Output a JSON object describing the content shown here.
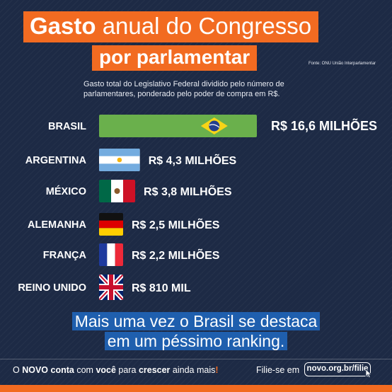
{
  "header": {
    "title_bold": "Gasto",
    "title_rest": "anual do Congresso",
    "title_line2": "por parlamentar",
    "source": "Fonte: ONU União Interparlamentar",
    "subtitle": "Gasto total do Legislativo Federal dividido pelo número de parlamentares, ponderado pelo poder de compra em R$."
  },
  "chart_data": {
    "type": "bar",
    "orientation": "horizontal",
    "unit": "R$ milhões",
    "categories": [
      "BRASIL",
      "ARGENTINA",
      "MÉXICO",
      "ALEMANHA",
      "FRANÇA",
      "REINO UNIDO"
    ],
    "values": [
      16.6,
      4.3,
      3.8,
      2.5,
      2.2,
      0.81
    ],
    "value_labels": [
      "R$ 16,6 MILHÕES",
      "R$ 4,3 MILHÕES",
      "R$ 3,8 MILHÕES",
      "R$ 2,5 MILHÕES",
      "R$ 2,2 MILHÕES",
      "R$ 810 MIL"
    ],
    "bar_fills": [
      "flag-brazil",
      "flag-argentina",
      "flag-mexico",
      "flag-germany",
      "flag-france",
      "flag-uk"
    ],
    "grid": false,
    "legend": "none"
  },
  "caption": {
    "line1": "Mais uma vez o Brasil se destaca",
    "line2": "em um péssimo ranking."
  },
  "footer": {
    "t1": "O",
    "b1": "NOVO conta",
    "t2": "com",
    "b2": "você",
    "t3": "para",
    "b3": "crescer",
    "t4": "ainda mais",
    "bang": "!",
    "cta": "Filie-se em",
    "link": "novo.org.br/filie",
    "cursor_icon": "cursor-arrow-icon"
  },
  "colors": {
    "background": "#1d2a45",
    "accent_orange": "#f26b21",
    "caption_highlight": "#1f5fae",
    "brazil_green": "#6ab04c"
  }
}
